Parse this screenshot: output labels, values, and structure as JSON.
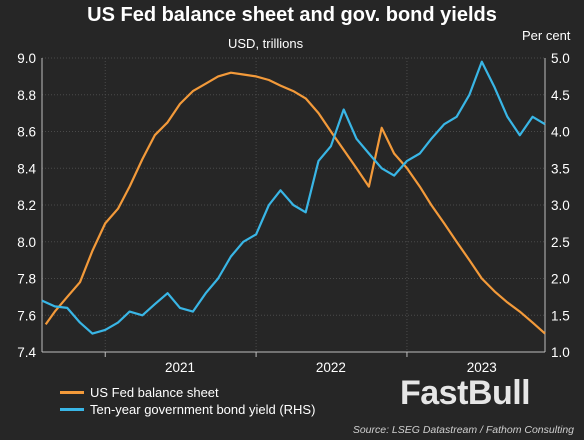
{
  "header": {
    "title": "US Fed balance sheet and gov. bond yields"
  },
  "chart_data": {
    "type": "line",
    "left_axis_label": "USD, trillions",
    "right_axis_label": "Per cent",
    "x_ticks": [
      "2021",
      "2022",
      "2023"
    ],
    "x_range": [
      "2020-08",
      "2023-12"
    ],
    "y_left_range": [
      7.4,
      9.0
    ],
    "y_left_ticks": [
      "7.4",
      "7.6",
      "7.8",
      "8.0",
      "8.2",
      "8.4",
      "8.6",
      "8.8",
      "9.0"
    ],
    "y_right_range": [
      1.0,
      5.0
    ],
    "y_right_ticks": [
      "1.0",
      "1.5",
      "2.0",
      "2.5",
      "3.0",
      "3.5",
      "4.0",
      "4.5",
      "5.0"
    ],
    "grid": true,
    "series": [
      {
        "name": "US Fed balance sheet",
        "axis": "left",
        "color": "#f39a3a",
        "points": [
          [
            "2020-08-10",
            7.55
          ],
          [
            "2020-09-01",
            7.62
          ],
          [
            "2020-10-01",
            7.7
          ],
          [
            "2020-11-01",
            7.78
          ],
          [
            "2020-12-01",
            7.95
          ],
          [
            "2021-01-01",
            8.1
          ],
          [
            "2021-02-01",
            8.18
          ],
          [
            "2021-03-01",
            8.3
          ],
          [
            "2021-04-01",
            8.45
          ],
          [
            "2021-05-01",
            8.58
          ],
          [
            "2021-06-01",
            8.65
          ],
          [
            "2021-07-01",
            8.75
          ],
          [
            "2021-08-01",
            8.82
          ],
          [
            "2021-09-01",
            8.86
          ],
          [
            "2021-10-01",
            8.9
          ],
          [
            "2021-11-01",
            8.92
          ],
          [
            "2021-12-01",
            8.91
          ],
          [
            "2022-01-01",
            8.9
          ],
          [
            "2022-02-01",
            8.88
          ],
          [
            "2022-03-01",
            8.85
          ],
          [
            "2022-04-01",
            8.82
          ],
          [
            "2022-05-01",
            8.78
          ],
          [
            "2022-06-01",
            8.7
          ],
          [
            "2022-07-01",
            8.6
          ],
          [
            "2022-08-01",
            8.5
          ],
          [
            "2022-09-01",
            8.4
          ],
          [
            "2022-10-01",
            8.3
          ],
          [
            "2022-11-01",
            8.62
          ],
          [
            "2022-12-01",
            8.48
          ],
          [
            "2023-01-01",
            8.4
          ],
          [
            "2023-02-01",
            8.3
          ],
          [
            "2023-03-01",
            8.2
          ],
          [
            "2023-04-01",
            8.1
          ],
          [
            "2023-05-01",
            8.0
          ],
          [
            "2023-06-01",
            7.9
          ],
          [
            "2023-07-01",
            7.8
          ],
          [
            "2023-08-01",
            7.73
          ],
          [
            "2023-09-01",
            7.67
          ],
          [
            "2023-10-01",
            7.62
          ],
          [
            "2023-11-01",
            7.56
          ],
          [
            "2023-12-01",
            7.5
          ]
        ]
      },
      {
        "name": "Ten-year government bond yield (RHS)",
        "axis": "right",
        "color": "#39b6e6",
        "points": [
          [
            "2020-08-01",
            1.7
          ],
          [
            "2020-09-01",
            1.62
          ],
          [
            "2020-10-01",
            1.6
          ],
          [
            "2020-11-01",
            1.4
          ],
          [
            "2020-12-01",
            1.25
          ],
          [
            "2021-01-01",
            1.3
          ],
          [
            "2021-02-01",
            1.4
          ],
          [
            "2021-03-01",
            1.55
          ],
          [
            "2021-04-01",
            1.5
          ],
          [
            "2021-05-01",
            1.65
          ],
          [
            "2021-06-01",
            1.8
          ],
          [
            "2021-07-01",
            1.6
          ],
          [
            "2021-08-01",
            1.55
          ],
          [
            "2021-09-01",
            1.8
          ],
          [
            "2021-10-01",
            2.0
          ],
          [
            "2021-11-01",
            2.3
          ],
          [
            "2021-12-01",
            2.5
          ],
          [
            "2022-01-01",
            2.6
          ],
          [
            "2022-02-01",
            3.0
          ],
          [
            "2022-03-01",
            3.2
          ],
          [
            "2022-04-01",
            3.0
          ],
          [
            "2022-05-01",
            2.9
          ],
          [
            "2022-06-01",
            3.6
          ],
          [
            "2022-07-01",
            3.8
          ],
          [
            "2022-08-01",
            4.3
          ],
          [
            "2022-09-01",
            3.9
          ],
          [
            "2022-10-01",
            3.7
          ],
          [
            "2022-11-01",
            3.5
          ],
          [
            "2022-12-01",
            3.4
          ],
          [
            "2023-01-01",
            3.6
          ],
          [
            "2023-02-01",
            3.7
          ],
          [
            "2023-03-01",
            3.9
          ],
          [
            "2023-04-01",
            4.1
          ],
          [
            "2023-05-01",
            4.2
          ],
          [
            "2023-06-01",
            4.5
          ],
          [
            "2023-07-01",
            4.95
          ],
          [
            "2023-08-01",
            4.6
          ],
          [
            "2023-09-01",
            4.2
          ],
          [
            "2023-10-01",
            3.95
          ],
          [
            "2023-11-01",
            4.2
          ],
          [
            "2023-12-01",
            4.1
          ]
        ]
      }
    ]
  },
  "watermark": "FastBull",
  "source": "Source: LSEG Datastream / Fathom Consulting"
}
